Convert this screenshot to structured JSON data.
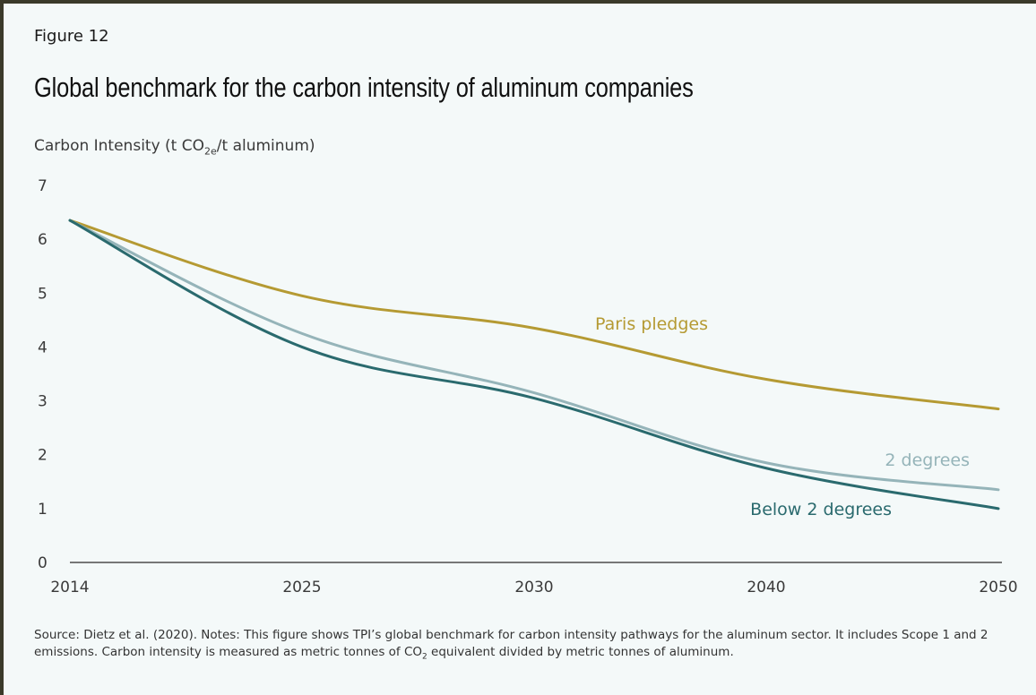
{
  "figure_label": "Figure 12",
  "title": "Global benchmark for the carbon intensity of aluminum companies",
  "ylabel": {
    "prefix": "Carbon Intensity (t CO",
    "sub": "2e",
    "suffix": "/t aluminum)"
  },
  "footnote": {
    "part1": "Source: Dietz et al. (2020). Notes: This figure shows TPI’s global benchmark for carbon intensity pathways for the aluminum sector. It includes Scope 1 and 2 emissions. Carbon intensity is measured as metric tonnes of CO",
    "sub": "2",
    "part2": " equivalent divided by metric tonnes of aluminum."
  },
  "chart_data": {
    "type": "line",
    "x": [
      2014,
      2025,
      2030,
      2040,
      2050
    ],
    "x_tick_labels": [
      "2014",
      "2025",
      "2030",
      "2040",
      "2050"
    ],
    "ylim": [
      0,
      7
    ],
    "y_ticks": [
      "0",
      "1",
      "2",
      "3",
      "4",
      "5",
      "6",
      "7"
    ],
    "grid": false,
    "series": [
      {
        "name": "Paris pledges",
        "color": "#b59a33",
        "values": [
          6.35,
          4.95,
          4.35,
          3.4,
          2.85
        ]
      },
      {
        "name": "2 degrees",
        "color": "#95b4b9",
        "values": [
          6.35,
          4.25,
          3.15,
          1.85,
          1.35
        ]
      },
      {
        "name": "Below 2 degrees",
        "color": "#2a6a6e",
        "values": [
          6.35,
          4.0,
          3.05,
          1.75,
          1.0
        ]
      }
    ]
  }
}
